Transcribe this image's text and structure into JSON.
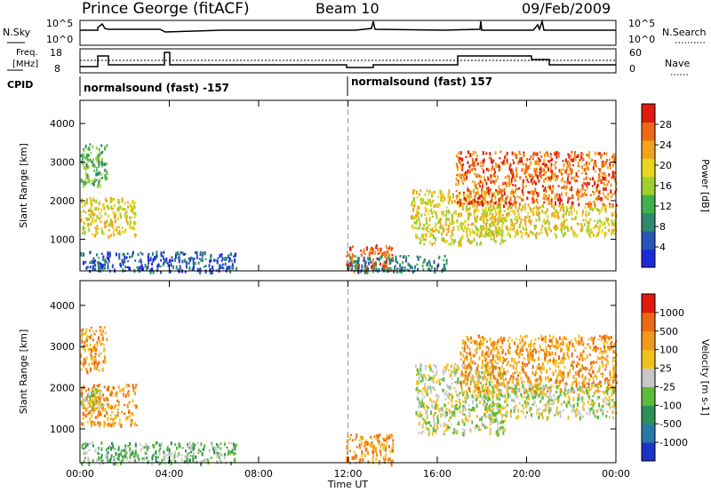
{
  "header": {
    "station": "Prince George (fitACF)",
    "beam": "Beam 10",
    "date": "09/Feb/2009"
  },
  "strip": {
    "nsky_label": "N.Sky",
    "nsky_ticks": [
      "10^5",
      "10^0"
    ],
    "nsearch_label": "N.Search",
    "freq_label_line1": "Freq.",
    "freq_label_line2": "[MHz]",
    "freq_ticks": [
      "18",
      "8"
    ],
    "nave_ticks": [
      "60",
      "0"
    ],
    "nave_label": "Nave",
    "cpid_label": "CPID",
    "cpid_left": "normalsound (fast) -157",
    "cpid_right": "normalsound (fast) 157"
  },
  "chart_data": [
    {
      "type": "heatmap",
      "panel": "power",
      "ylabel": "Slant Range [km]",
      "xlabel": "Time UT",
      "x_ticks": [
        "00:00",
        "04:00",
        "08:00",
        "12:00",
        "16:00",
        "20:00",
        "00:00"
      ],
      "x_range_hours": [
        0,
        24
      ],
      "y_ticks": [
        1000,
        2000,
        3000,
        4000
      ],
      "ylim": [
        180,
        4600
      ],
      "colorbar": {
        "label": "Power [dB]",
        "ticks": [
          "28",
          "24",
          "20",
          "16",
          "12",
          "8",
          "4"
        ],
        "colors": [
          "#1c2bd9",
          "#2a55b8",
          "#2f8a6e",
          "#3fb04a",
          "#9ecf2a",
          "#e8d61e",
          "#f2a31b",
          "#ee6a12",
          "#e01a0c"
        ]
      },
      "regions": [
        {
          "t": [
            0.0,
            1.2
          ],
          "r": [
            2400,
            3500
          ],
          "level": 3
        },
        {
          "t": [
            0.0,
            2.5
          ],
          "r": [
            1100,
            2100
          ],
          "level": 5
        },
        {
          "t": [
            0.0,
            7.0
          ],
          "r": [
            180,
            700
          ],
          "level": 1
        },
        {
          "t": [
            11.9,
            14.0
          ],
          "r": [
            180,
            900
          ],
          "level": 7
        },
        {
          "t": [
            12.0,
            16.5
          ],
          "r": [
            180,
            600
          ],
          "level": 2
        },
        {
          "t": [
            14.8,
            19.0
          ],
          "r": [
            900,
            2300
          ],
          "level": 5
        },
        {
          "t": [
            16.8,
            24.0
          ],
          "r": [
            1900,
            3300
          ],
          "level": 7
        },
        {
          "t": [
            18.0,
            24.0
          ],
          "r": [
            1100,
            1900
          ],
          "level": 5
        }
      ]
    },
    {
      "type": "heatmap",
      "panel": "velocity",
      "ylabel": "Slant Range [km]",
      "xlabel": "Time UT",
      "x_ticks": [
        "00:00",
        "04:00",
        "08:00",
        "12:00",
        "16:00",
        "20:00",
        "00:00"
      ],
      "x_range_hours": [
        0,
        24
      ],
      "y_ticks": [
        1000,
        2000,
        3000,
        4000
      ],
      "ylim": [
        180,
        4600
      ],
      "colorbar": {
        "label": "Velocity [m s-1]",
        "ticks": [
          "1000",
          "500",
          "100",
          "25",
          "-25",
          "-100",
          "-500",
          "-1000"
        ],
        "colors": [
          "#1c33c9",
          "#2a78a8",
          "#2f8f5a",
          "#5dbb3a",
          "#c8c8c8",
          "#f2c21b",
          "#f29a1b",
          "#ee6a12",
          "#e01a0c"
        ]
      },
      "regions": [
        {
          "t": [
            0.0,
            1.2
          ],
          "r": [
            2400,
            3500
          ],
          "level": 6
        },
        {
          "t": [
            0.0,
            2.5
          ],
          "r": [
            1100,
            2100
          ],
          "level": 6
        },
        {
          "t": [
            0.0,
            1.0
          ],
          "r": [
            1500,
            2000
          ],
          "level": 4
        },
        {
          "t": [
            0.0,
            7.0
          ],
          "r": [
            180,
            700
          ],
          "level": 3
        },
        {
          "t": [
            11.9,
            14.0
          ],
          "r": [
            180,
            900
          ],
          "level": 6
        },
        {
          "t": [
            15.0,
            19.0
          ],
          "r": [
            900,
            2600
          ],
          "level": 4
        },
        {
          "t": [
            17.0,
            24.0
          ],
          "r": [
            1900,
            3300
          ],
          "level": 6
        },
        {
          "t": [
            18.0,
            24.0
          ],
          "r": [
            1300,
            2100
          ],
          "level": 4
        }
      ]
    }
  ]
}
